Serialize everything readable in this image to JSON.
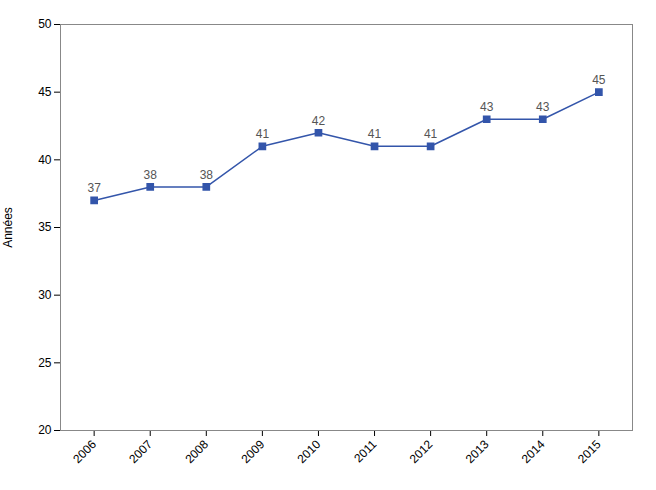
{
  "chart_data": {
    "type": "line",
    "x": [
      2006,
      2007,
      2008,
      2009,
      2010,
      2011,
      2012,
      2013,
      2014,
      2015
    ],
    "values": [
      37,
      38,
      38,
      41,
      42,
      41,
      41,
      43,
      43,
      45
    ],
    "xlim": [
      2005.4,
      2015.6
    ],
    "xticks": [
      2006,
      2007,
      2008,
      2009,
      2010,
      2011,
      2012,
      2013,
      2014,
      2015
    ],
    "ylim": [
      20,
      50
    ],
    "yticks": [
      20,
      25,
      30,
      35,
      40,
      45,
      50
    ],
    "ylabel": "Années",
    "color": "#3355aa",
    "marker": "square",
    "data_labels": true,
    "grid": false
  }
}
